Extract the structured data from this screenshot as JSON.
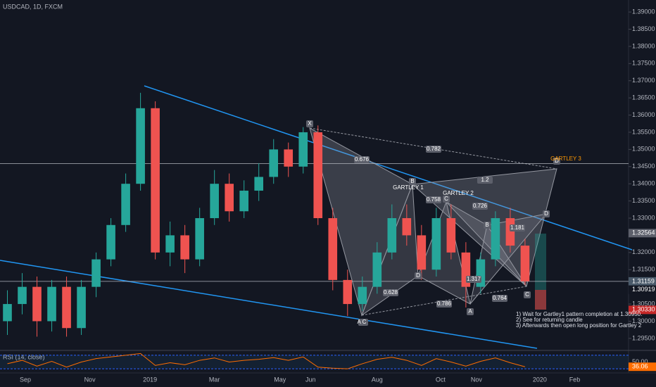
{
  "chart_data": [
    {
      "type": "candlestick",
      "title": "USDCAD, 1D, FXCM",
      "x": [
        7,
        21,
        35,
        49,
        63,
        77,
        91,
        105,
        119,
        133,
        147,
        161,
        175,
        189,
        203,
        217,
        231,
        245,
        259,
        273,
        287,
        301,
        315,
        329,
        343,
        357,
        371,
        385,
        399,
        413,
        427,
        441,
        455,
        469,
        483,
        497
      ],
      "open": [
        1.3,
        1.305,
        1.31,
        1.3,
        1.31,
        1.298,
        1.31,
        1.318,
        1.328,
        1.34,
        1.362,
        1.32,
        1.325,
        1.318,
        1.33,
        1.34,
        1.332,
        1.338,
        1.342,
        1.35,
        1.345,
        1.355,
        1.33,
        1.312,
        1.305,
        1.31,
        1.32,
        1.33,
        1.325,
        1.315,
        1.33,
        1.32,
        1.31,
        1.318,
        1.33,
        1.322
      ],
      "high": [
        1.309,
        1.314,
        1.313,
        1.312,
        1.313,
        1.312,
        1.32,
        1.33,
        1.343,
        1.3665,
        1.364,
        1.329,
        1.328,
        1.333,
        1.344,
        1.343,
        1.341,
        1.346,
        1.353,
        1.352,
        1.3565,
        1.357,
        1.333,
        1.315,
        1.313,
        1.323,
        1.334,
        1.334,
        1.328,
        1.333,
        1.334,
        1.323,
        1.32,
        1.332,
        1.333,
        1.324
      ],
      "low": [
        1.296,
        1.302,
        1.2955,
        1.297,
        1.2955,
        1.296,
        1.307,
        1.316,
        1.326,
        1.338,
        1.318,
        1.316,
        1.314,
        1.316,
        1.328,
        1.329,
        1.33,
        1.335,
        1.34,
        1.342,
        1.343,
        1.328,
        1.309,
        1.3015,
        1.303,
        1.308,
        1.318,
        1.322,
        1.312,
        1.313,
        1.318,
        1.304,
        1.308,
        1.316,
        1.32,
        1.3105
      ],
      "close": [
        1.305,
        1.31,
        1.3,
        1.31,
        1.298,
        1.31,
        1.318,
        1.328,
        1.34,
        1.362,
        1.32,
        1.325,
        1.318,
        1.33,
        1.34,
        1.332,
        1.338,
        1.342,
        1.35,
        1.345,
        1.355,
        1.33,
        1.312,
        1.305,
        1.31,
        1.32,
        1.33,
        1.325,
        1.315,
        1.33,
        1.32,
        1.31,
        1.318,
        1.33,
        1.322,
        1.3116
      ],
      "up_color": "#26a69a",
      "down_color": "#ef5350",
      "xlim": [
        0,
        595
      ],
      "xticks": [
        {
          "value": 24,
          "label": "Sep"
        },
        {
          "value": 85,
          "label": "Nov"
        },
        {
          "value": 142,
          "label": "2019"
        },
        {
          "value": 203,
          "label": "Mar"
        },
        {
          "value": 265,
          "label": "May"
        },
        {
          "value": 294,
          "label": "Jun"
        },
        {
          "value": 357,
          "label": "Aug"
        },
        {
          "value": 417,
          "label": "Oct"
        },
        {
          "value": 451,
          "label": "Nov"
        },
        {
          "value": 511,
          "label": "2020"
        },
        {
          "value": 544,
          "label": "Feb"
        }
      ],
      "ylim": [
        1.2917,
        1.3935
      ],
      "yticks": [
        {
          "value": 1.39,
          "label": "1.39000"
        },
        {
          "value": 1.385,
          "label": "1.38500"
        },
        {
          "value": 1.38,
          "label": "1.38000"
        },
        {
          "value": 1.375,
          "label": "1.37500"
        },
        {
          "value": 1.37,
          "label": "1.37000"
        },
        {
          "value": 1.365,
          "label": "1.36500"
        },
        {
          "value": 1.36,
          "label": "1.36000"
        },
        {
          "value": 1.355,
          "label": "1.35500"
        },
        {
          "value": 1.35,
          "label": "1.35000"
        },
        {
          "value": 1.345,
          "label": "1.34500"
        },
        {
          "value": 1.34,
          "label": "1.34000"
        },
        {
          "value": 1.335,
          "label": "1.33500"
        },
        {
          "value": 1.33,
          "label": "1.33000"
        },
        {
          "value": 1.32,
          "label": "1.32000"
        },
        {
          "value": 1.315,
          "label": "1.31500"
        },
        {
          "value": 1.305,
          "label": "1.30500"
        },
        {
          "value": 1.3,
          "label": "1.30000"
        },
        {
          "value": 1.295,
          "label": "1.29500"
        }
      ],
      "price_tags": [
        {
          "value": 1.32564,
          "label": "1.32564",
          "color": "#5d606b"
        },
        {
          "value": 1.31159,
          "label": "1.31159",
          "color": "#4a5a6a"
        },
        {
          "value": 1.30919,
          "label": "1.30919",
          "color": "#131722"
        },
        {
          "value": 1.3033,
          "label": "1.30330",
          "color": "#c62828"
        }
      ],
      "hlines": [
        1.3459,
        1.31159
      ],
      "pattern_labels": [
        "X",
        "A C",
        "B",
        "C",
        "D",
        "A",
        "B",
        "C",
        "D",
        "D",
        "GARTLEY 1",
        "GARTLEY 2",
        "GARTLEY 3",
        "0.676",
        "0.782",
        "1.2",
        "0.758",
        "0.726",
        "1.181",
        "1.317",
        "0.628",
        "0.786",
        "0.764"
      ],
      "notes": [
        "1) Wait for Gartley1 pattern completion at 1.30950.",
        "2) See for returning candle",
        "3) Afterwards then open long position for Gartley 2"
      ]
    },
    {
      "type": "line",
      "title": "RSI (14, close)",
      "x": [
        7,
        21,
        35,
        49,
        63,
        77,
        91,
        105,
        119,
        133,
        147,
        161,
        175,
        189,
        203,
        217,
        231,
        245,
        259,
        273,
        287,
        301,
        315,
        329,
        343,
        357,
        371,
        385,
        399,
        413,
        427,
        441,
        455,
        469,
        483,
        497
      ],
      "values": [
        45,
        55,
        38,
        52,
        35,
        50,
        60,
        65,
        70,
        75,
        40,
        48,
        42,
        55,
        62,
        50,
        55,
        58,
        63,
        55,
        65,
        35,
        32,
        30,
        45,
        58,
        64,
        55,
        40,
        60,
        50,
        38,
        52,
        62,
        48,
        36.06
      ],
      "color": "#ff6d00",
      "xlim": [
        0,
        595
      ],
      "ylim": [
        20,
        80
      ],
      "yticks": [
        {
          "value": 50,
          "label": "50.00"
        }
      ]
    }
  ]
}
